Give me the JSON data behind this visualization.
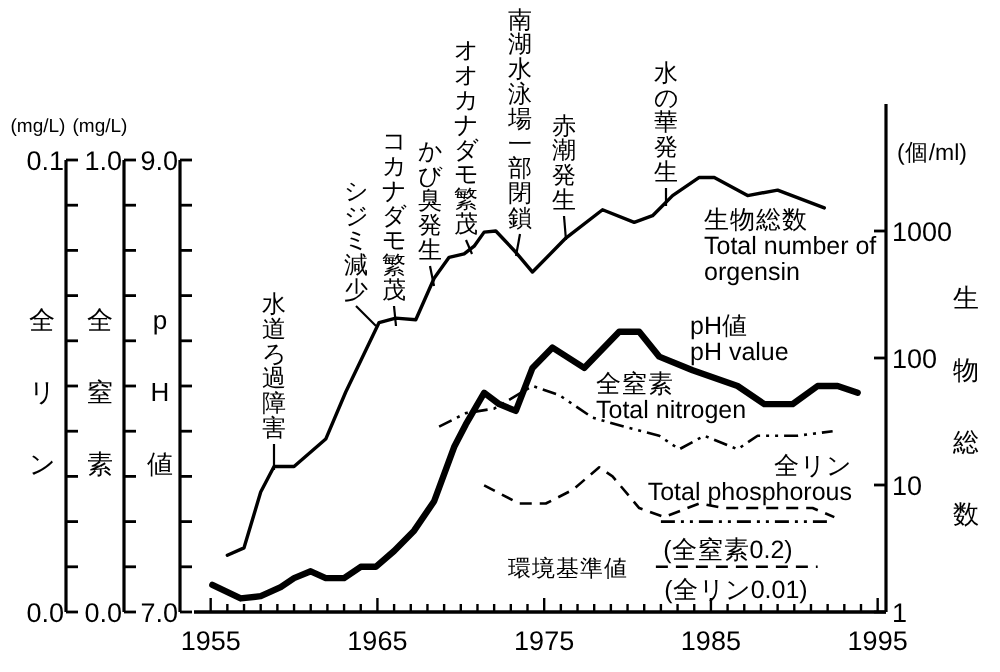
{
  "chart_data": [
    {
      "type": "line",
      "xlim": [
        1954,
        1995.5
      ],
      "xticks": [
        1955,
        {
          "value": 1956,
          "label": null
        },
        {
          "value": 1957,
          "label": null
        },
        {
          "value": 1958,
          "label": null
        },
        {
          "value": 1959,
          "label": null
        },
        {
          "value": 1960,
          "label": null
        },
        {
          "value": 1961,
          "label": null
        },
        {
          "value": 1962,
          "label": null
        },
        {
          "value": 1963,
          "label": null
        },
        {
          "value": 1964,
          "label": null
        },
        1965,
        {
          "value": 1966,
          "label": null
        },
        {
          "value": 1967,
          "label": null
        },
        {
          "value": 1968,
          "label": null
        },
        {
          "value": 1969,
          "label": null
        },
        {
          "value": 1970,
          "label": null
        },
        {
          "value": 1971,
          "label": null
        },
        {
          "value": 1972,
          "label": null
        },
        {
          "value": 1973,
          "label": null
        },
        {
          "value": 1974,
          "label": null
        },
        1975,
        {
          "value": 1976,
          "label": null
        },
        {
          "value": 1977,
          "label": null
        },
        {
          "value": 1978,
          "label": null
        },
        {
          "value": 1979,
          "label": null
        },
        {
          "value": 1980,
          "label": null
        },
        {
          "value": 1981,
          "label": null
        },
        {
          "value": 1982,
          "label": null
        },
        {
          "value": 1983,
          "label": null
        },
        {
          "value": 1984,
          "label": null
        },
        1985,
        {
          "value": 1986,
          "label": null
        },
        {
          "value": 1987,
          "label": null
        },
        {
          "value": 1988,
          "label": null
        },
        {
          "value": 1989,
          "label": null
        },
        {
          "value": 1990,
          "label": null
        },
        {
          "value": 1991,
          "label": null
        },
        {
          "value": 1992,
          "label": null
        },
        {
          "value": 1993,
          "label": null
        },
        {
          "value": 1994,
          "label": null
        },
        1995
      ],
      "ylabel": "pH値",
      "ylim": [
        7,
        9
      ],
      "yticks": [
        {
          "value": 7,
          "label": "7.0"
        },
        {
          "value": 7.2,
          "label": null
        },
        {
          "value": 7.4,
          "label": null
        },
        {
          "value": 7.6,
          "label": null
        },
        {
          "value": 7.8,
          "label": null
        },
        {
          "value": 8,
          "label": null
        },
        {
          "value": 8.2,
          "label": null
        },
        {
          "value": 8.4,
          "label": null
        },
        {
          "value": 8.6,
          "label": null
        },
        {
          "value": 8.8,
          "label": null
        },
        {
          "value": 9,
          "label": "9.0"
        }
      ],
      "y3label": "全窒素",
      "y3lim": [
        0,
        1
      ],
      "y3ticks": [
        {
          "value": 0,
          "label": "0.0"
        },
        {
          "value": 0.1,
          "label": null
        },
        {
          "value": 0.2,
          "label": null
        },
        {
          "value": 0.3,
          "label": null
        },
        {
          "value": 0.4,
          "label": null
        },
        {
          "value": 0.5,
          "label": null
        },
        {
          "value": 0.6,
          "label": null
        },
        {
          "value": 0.7,
          "label": null
        },
        {
          "value": 0.8,
          "label": null
        },
        {
          "value": 0.9,
          "label": null
        },
        {
          "value": 1,
          "label": "1.0"
        }
      ],
      "y2label": "生物総数",
      "y2lim": [
        1,
        10000
      ],
      "y2ticks": [
        1,
        10,
        100,
        1000
      ],
      "log": "y2",
      "series": [
        {
          "name": "生物総数\nTotal number of\norgensin",
          "axis": "y2",
          "color": "#000000",
          "x": [
            1956,
            1957,
            1958,
            1958.8,
            1960,
            1961.9,
            1963.1,
            1965.1,
            1966.1,
            1967.3,
            1968.4,
            1969.3,
            1970.2,
            1970.8,
            1971.4,
            1972.1,
            1973.3,
            1974.3,
            1976.3,
            1978.5,
            1980.4,
            1981.5,
            1982.7,
            1984.3,
            1985.2,
            1987.2,
            1989,
            1991.8
          ],
          "values": [
            2.8,
            3.2,
            8.8,
            14,
            14,
            23,
            54,
            190,
            206,
            200,
            425,
            620,
            660,
            760,
            980,
            1000,
            680,
            475,
            880,
            1470,
            1170,
            1320,
            1900,
            2640,
            2640,
            1900,
            2100,
            1520
          ]
        },
        {
          "name": "pH値\npH value",
          "axis": "y",
          "color": "#000000",
          "x": [
            1955.1,
            1956.8,
            1958,
            1959.2,
            1960,
            1961,
            1961.9,
            1963,
            1964,
            1964.9,
            1966,
            1967.2,
            1968.4,
            1969.6,
            1970.3,
            1971.4,
            1972.3,
            1973.3,
            1974.3,
            1975.5,
            1977.4,
            1979.5,
            1980.7,
            1981.9,
            1983.9,
            1986.6,
            1988.2,
            1989.9,
            1991.4,
            1992.6,
            1993.8
          ],
          "values": [
            7.12,
            7.06,
            7.07,
            7.11,
            7.15,
            7.18,
            7.15,
            7.15,
            7.2,
            7.2,
            7.27,
            7.36,
            7.49,
            7.73,
            7.83,
            7.97,
            7.92,
            7.89,
            8.08,
            8.17,
            8.08,
            8.24,
            8.24,
            8.13,
            8.07,
            8,
            7.92,
            7.92,
            8,
            8,
            7.97
          ]
        },
        {
          "name": "全窒素\nTotal nitrogen",
          "axis": "y3",
          "color": "#000000",
          "line_style": "dashdot",
          "x": [
            1968.7,
            1970.3,
            1972,
            1974.3,
            1975.9,
            1977.9,
            1979.8,
            1981.9,
            1983.1,
            1984.6,
            1986.6,
            1987.8,
            1990.2,
            1992.3
          ],
          "values": [
            0.41,
            0.44,
            0.45,
            0.5,
            0.48,
            0.43,
            0.41,
            0.39,
            0.36,
            0.39,
            0.36,
            0.39,
            0.39,
            0.4
          ]
        },
        {
          "name": "(全窒素0.2)",
          "axis": "y3",
          "color": "#000000",
          "line_style": "dashdot",
          "x": [
            1982,
            1992.3
          ],
          "values": [
            0.2,
            0.2
          ]
        }
      ],
      "annotations": [
        "(mg/L)",
        "(mg/L)",
        "(個/ml)",
        "環境基準値",
        "水道ろ過障害",
        "シジミ減少",
        "コカナダモ繁茂",
        "かび臭発生",
        "オオカナダモ繁茂",
        "南湖水泳場一部閉鎖",
        "赤潮発生",
        "水の華発生"
      ]
    },
    {
      "type": "line",
      "tick_labels": "y",
      "xlim": [
        1954,
        1995.5
      ],
      "ylabel": "全リン",
      "ylim": [
        0,
        0.1
      ],
      "yticks": [
        {
          "value": 0,
          "label": "0.0"
        },
        {
          "value": 0.01,
          "label": null
        },
        {
          "value": 0.02,
          "label": null
        },
        {
          "value": 0.03,
          "label": null
        },
        {
          "value": 0.04,
          "label": null
        },
        {
          "value": 0.05,
          "label": null
        },
        {
          "value": 0.06,
          "label": null
        },
        {
          "value": 0.07,
          "label": null
        },
        {
          "value": 0.08,
          "label": null
        },
        {
          "value": 0.09,
          "label": null
        },
        {
          "value": 0.1,
          "label": "0.1"
        }
      ],
      "series": [
        {
          "name": "全リン\nTotal phosphorous",
          "color": "#000000",
          "line_style": "dashed",
          "x": [
            1971.4,
            1973.5,
            1975.1,
            1976.7,
            1978.3,
            1979.1,
            1980.7,
            1982.2,
            1984.3,
            1985.8,
            1991.1,
            1992.4
          ],
          "values": [
            0.028,
            0.024,
            0.024,
            0.027,
            0.032,
            0.03,
            0.023,
            0.021,
            0.024,
            0.023,
            0.023,
            0.021
          ]
        },
        {
          "name": "(全リン0.01)",
          "color": "#000000",
          "line_style": "dashed",
          "x": [
            1981.7,
            1991.4
          ],
          "values": [
            0.01,
            0.01
          ]
        }
      ]
    }
  ]
}
